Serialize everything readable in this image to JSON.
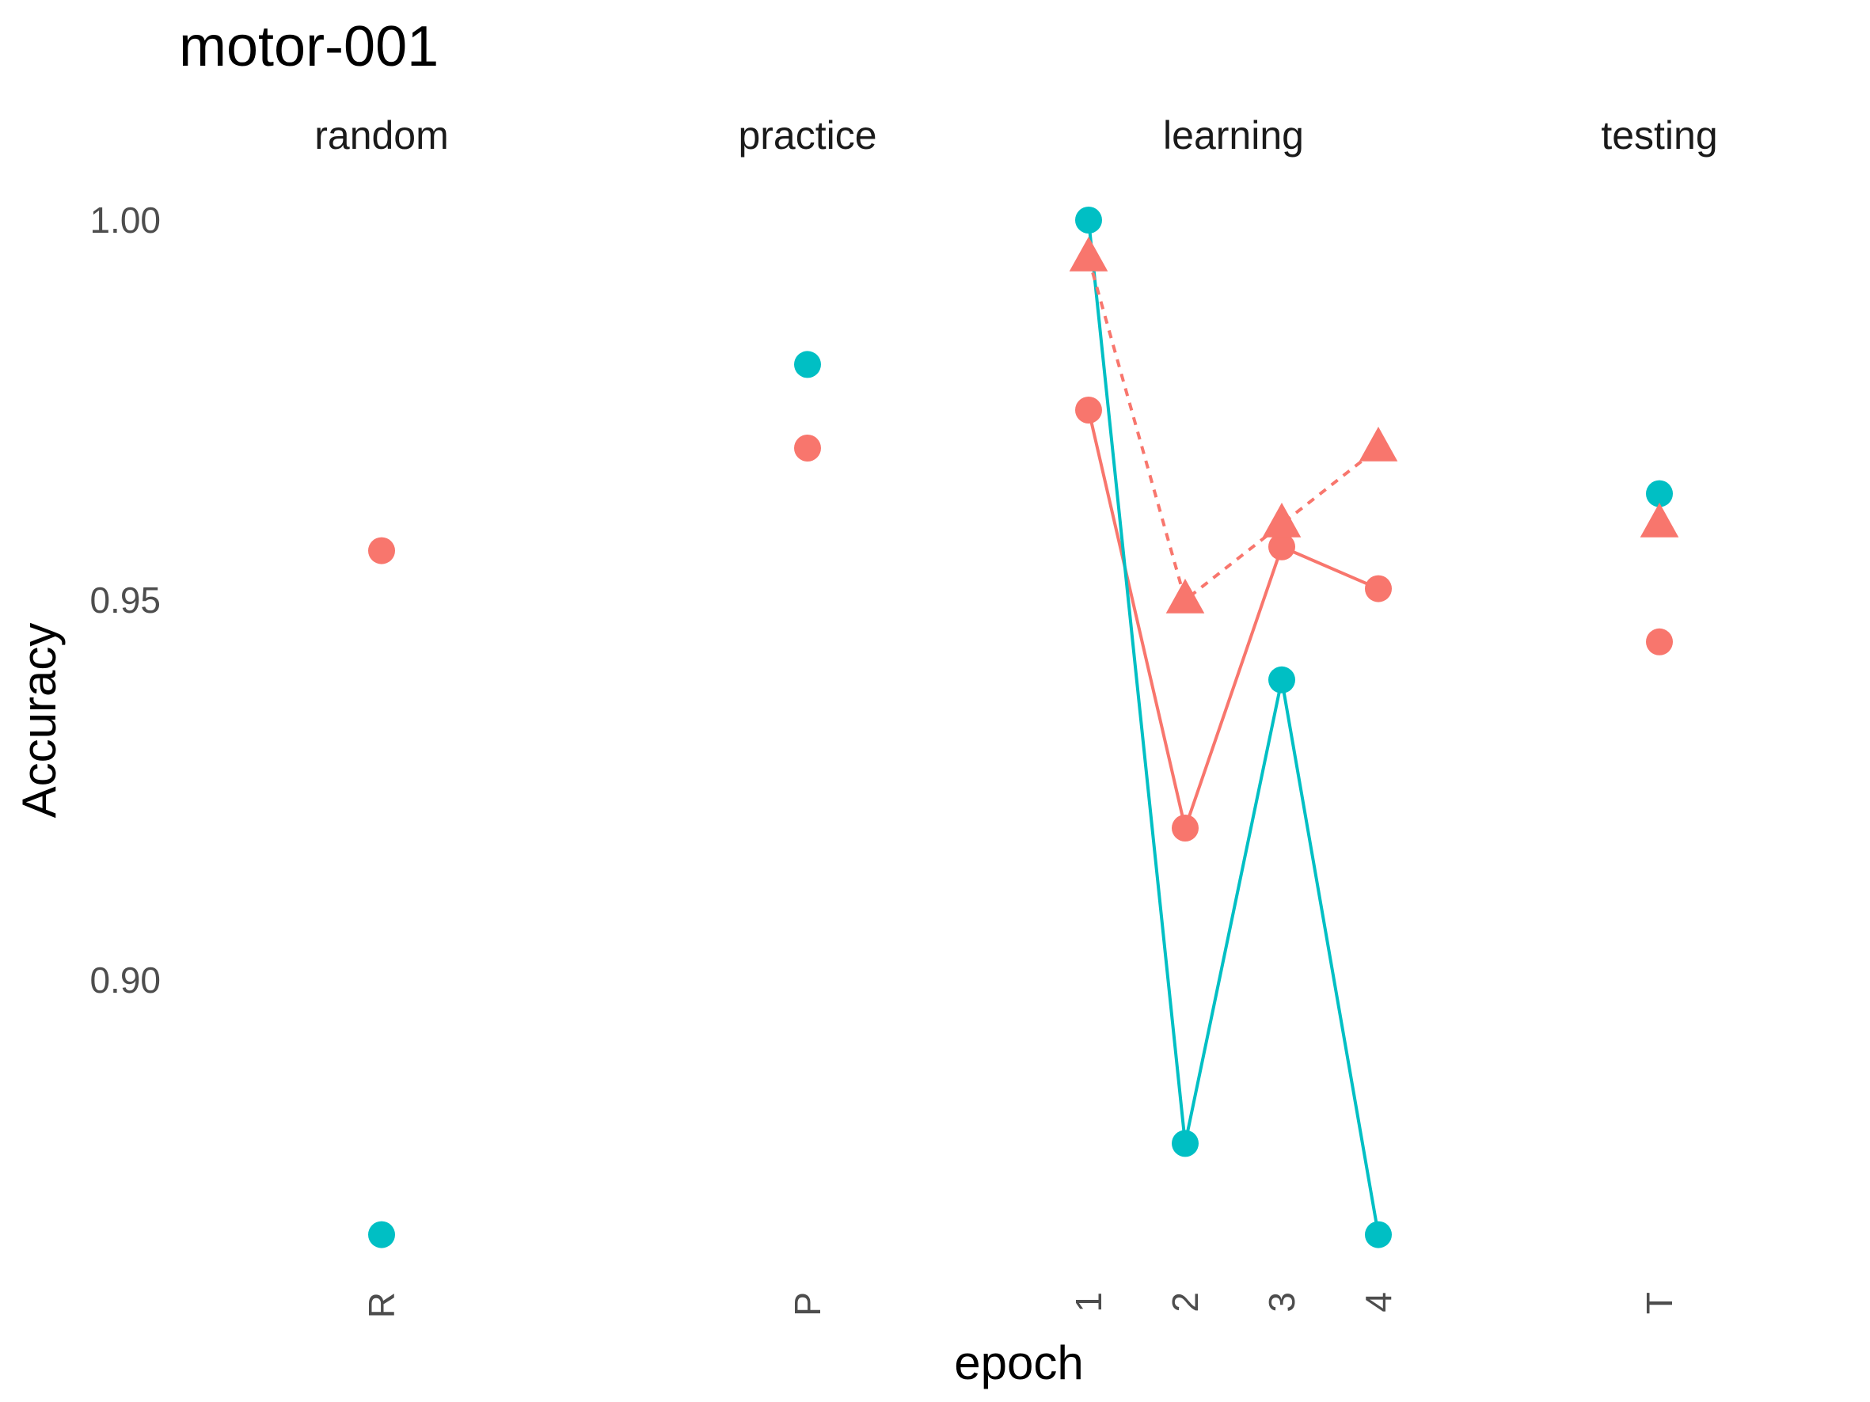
{
  "chart_data": {
    "type": "scatter",
    "title": "motor-001",
    "xlabel": "epoch",
    "ylabel": "Accuracy",
    "ylim": [
      0.866,
      1.004
    ],
    "y_ticks": [
      {
        "value": 0.9,
        "label": "0.90"
      },
      {
        "value": 0.95,
        "label": "0.95"
      },
      {
        "value": 1.0,
        "label": "1.00"
      }
    ],
    "grid": false,
    "legend": "none",
    "facets": [
      {
        "label": "random",
        "categories": [
          "R"
        ]
      },
      {
        "label": "practice",
        "categories": [
          "P"
        ]
      },
      {
        "label": "learning",
        "categories": [
          "1",
          "2",
          "3",
          "4"
        ]
      },
      {
        "label": "testing",
        "categories": [
          "T"
        ]
      }
    ],
    "colors": {
      "coral": "#F8766D",
      "teal": "#00BFC4"
    },
    "series": [
      {
        "color": "#F8766D",
        "marker": "circle",
        "line": "solid",
        "points": [
          {
            "facet": "random",
            "x": "R",
            "y": 0.9565
          },
          {
            "facet": "practice",
            "x": "P",
            "y": 0.97
          },
          {
            "facet": "learning",
            "x": "1",
            "y": 0.975
          },
          {
            "facet": "learning",
            "x": "2",
            "y": 0.92
          },
          {
            "facet": "learning",
            "x": "3",
            "y": 0.957
          },
          {
            "facet": "learning",
            "x": "4",
            "y": 0.9515
          },
          {
            "facet": "testing",
            "x": "T",
            "y": 0.9445
          }
        ]
      },
      {
        "color": "#00BFC4",
        "marker": "circle",
        "line": "solid",
        "points": [
          {
            "facet": "random",
            "x": "R",
            "y": 0.8665
          },
          {
            "facet": "practice",
            "x": "P",
            "y": 0.981
          },
          {
            "facet": "learning",
            "x": "1",
            "y": 1.0
          },
          {
            "facet": "learning",
            "x": "2",
            "y": 0.8785
          },
          {
            "facet": "learning",
            "x": "3",
            "y": 0.9395
          },
          {
            "facet": "learning",
            "x": "4",
            "y": 0.8665
          },
          {
            "facet": "testing",
            "x": "T",
            "y": 0.964
          }
        ]
      },
      {
        "color": "#F8766D",
        "marker": "triangle",
        "line": "dashed",
        "points": [
          {
            "facet": "learning",
            "x": "1",
            "y": 0.995
          },
          {
            "facet": "learning",
            "x": "2",
            "y": 0.95
          },
          {
            "facet": "learning",
            "x": "3",
            "y": 0.96
          },
          {
            "facet": "learning",
            "x": "4",
            "y": 0.97
          },
          {
            "facet": "testing",
            "x": "T",
            "y": 0.96
          }
        ]
      }
    ]
  }
}
